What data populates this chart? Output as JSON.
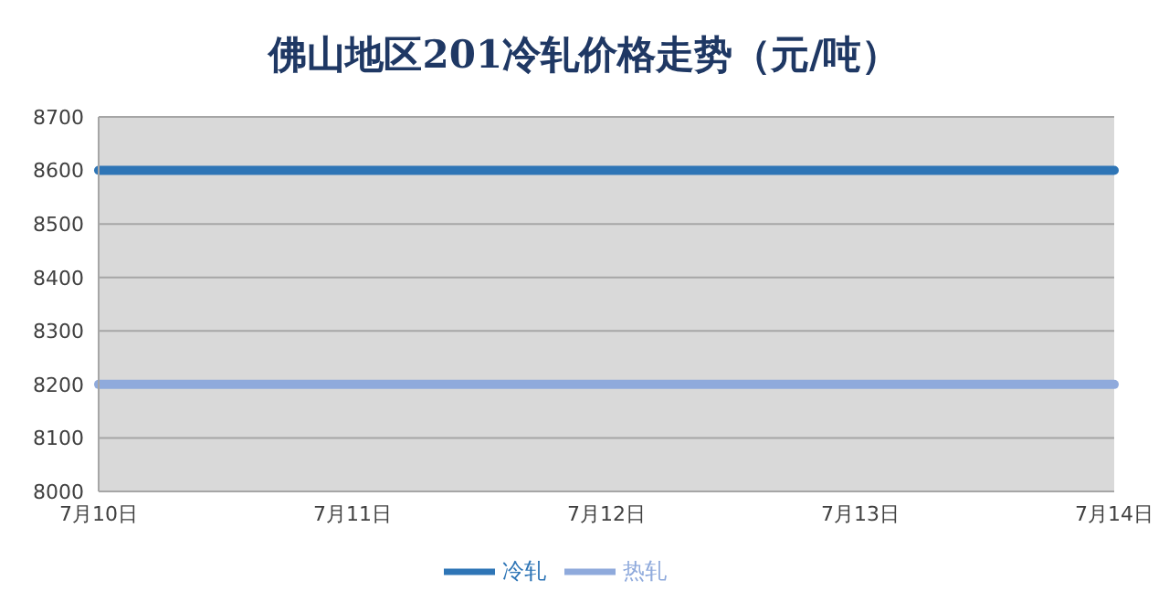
{
  "chart_data": {
    "type": "line",
    "title": "佛山地区201冷轧价格走势（元/吨）",
    "categories": [
      "7月10日",
      "7月11日",
      "7月12日",
      "7月13日",
      "7月14日"
    ],
    "series": [
      {
        "name": "冷轧",
        "color": "#2e75b6",
        "values": [
          8600,
          8600,
          8600,
          8600,
          8600
        ]
      },
      {
        "name": "热轧",
        "color": "#8faadc",
        "values": [
          8200,
          8200,
          8200,
          8200,
          8200
        ]
      }
    ],
    "ylim": [
      8000,
      8700
    ],
    "yticks": [
      8000,
      8100,
      8200,
      8300,
      8400,
      8500,
      8600,
      8700
    ],
    "grid": "y",
    "legend": "bottom",
    "marker": "none",
    "line_style": "solid"
  }
}
